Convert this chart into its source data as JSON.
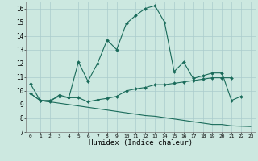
{
  "title": "",
  "xlabel": "Humidex (Indice chaleur)",
  "bg_color": "#cce8e0",
  "grid_color": "#aacccc",
  "line_color": "#1a6b5a",
  "xlim": [
    -0.5,
    23.5
  ],
  "ylim": [
    7,
    16.5
  ],
  "yticks": [
    7,
    8,
    9,
    10,
    11,
    12,
    13,
    14,
    15,
    16
  ],
  "xticks": [
    0,
    1,
    2,
    3,
    4,
    5,
    6,
    7,
    8,
    9,
    10,
    11,
    12,
    13,
    14,
    15,
    16,
    17,
    18,
    19,
    20,
    21,
    22,
    23
  ],
  "line1_x": [
    0,
    1,
    2,
    3,
    4,
    5,
    6,
    7,
    8,
    9,
    10,
    11,
    12,
    13,
    14,
    15,
    16,
    17,
    18,
    19,
    20,
    21,
    22
  ],
  "line1_y": [
    10.5,
    9.3,
    9.2,
    9.7,
    9.5,
    12.1,
    10.7,
    12.0,
    13.7,
    13.0,
    14.9,
    15.5,
    16.0,
    16.2,
    15.0,
    11.4,
    12.1,
    10.9,
    11.1,
    11.3,
    11.3,
    9.3,
    9.6
  ],
  "line2_x": [
    0,
    1,
    2,
    3,
    4,
    5,
    6,
    7,
    8,
    9,
    10,
    11,
    12,
    13,
    14,
    15,
    16,
    17,
    18,
    19,
    20,
    21
  ],
  "line2_y": [
    9.8,
    9.3,
    9.3,
    9.6,
    9.5,
    9.5,
    9.2,
    9.35,
    9.45,
    9.6,
    10.0,
    10.15,
    10.25,
    10.45,
    10.45,
    10.55,
    10.65,
    10.75,
    10.85,
    10.95,
    10.95,
    10.95
  ],
  "line3_x": [
    0,
    1,
    2,
    3,
    4,
    5,
    6,
    7,
    8,
    9,
    10,
    11,
    12,
    13,
    14,
    15,
    16,
    17,
    18,
    19,
    20,
    21,
    23
  ],
  "line3_y": [
    9.8,
    9.3,
    9.2,
    9.1,
    9.0,
    8.9,
    8.8,
    8.7,
    8.6,
    8.5,
    8.4,
    8.3,
    8.2,
    8.15,
    8.05,
    7.95,
    7.85,
    7.75,
    7.65,
    7.55,
    7.55,
    7.45,
    7.4
  ]
}
